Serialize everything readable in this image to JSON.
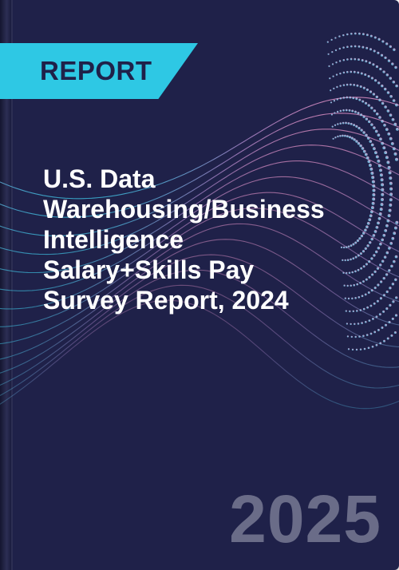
{
  "cover": {
    "tag": "REPORT",
    "title_lines": [
      "U.S. Data",
      "Warehousing/Business",
      "Intelligence",
      "Salary+Skills Pay",
      "Survey Report, 2024"
    ],
    "year": "2025"
  },
  "colors": {
    "background": "#1f2149",
    "tag": "#2ec8e4",
    "tag_text": "#1f2149",
    "title_text": "#ffffff",
    "year_text": "#6a6c88",
    "wave_pink": "#f29bd2",
    "wave_cyan": "#3fc6e6"
  }
}
